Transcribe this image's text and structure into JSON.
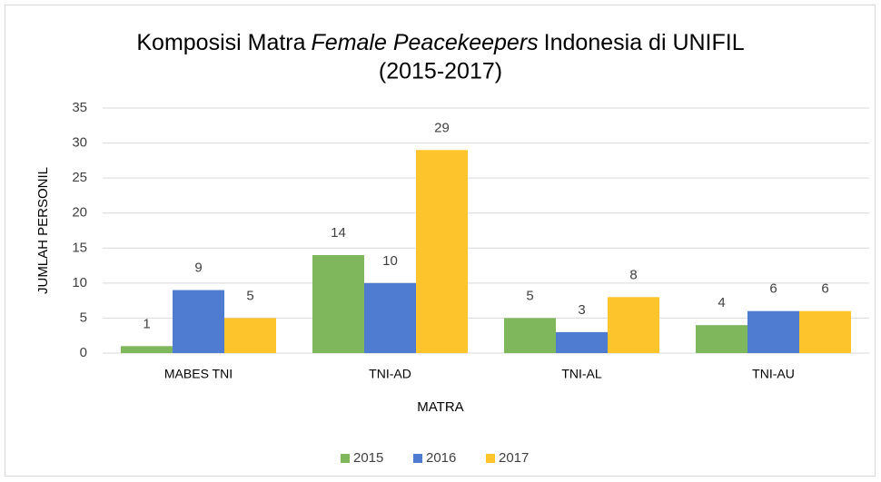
{
  "chart_data": {
    "type": "bar",
    "title": [
      "Komposisi Matra",
      "Female Peacekeepers",
      "Indonesia di UNIFIL",
      "(2015-2017)"
    ],
    "x_label": "MATRA",
    "y_label": "JUMLAH PERSONIL",
    "categories": [
      "MABES TNI",
      "TNI-AD",
      "TNI-AL",
      "TNI-AU"
    ],
    "series": [
      {
        "name": "2015",
        "color": "#7fb85c",
        "values": [
          1,
          14,
          5,
          4
        ]
      },
      {
        "name": "2016",
        "color": "#4f7bd0",
        "values": [
          9,
          10,
          3,
          6
        ]
      },
      {
        "name": "2017",
        "color": "#fdc52b",
        "values": [
          5,
          29,
          8,
          6
        ]
      }
    ],
    "ylim": [
      0,
      35
    ],
    "yticks": [
      0,
      5,
      10,
      15,
      20,
      25,
      30,
      35
    ],
    "grid": true,
    "legend": "bottom"
  }
}
